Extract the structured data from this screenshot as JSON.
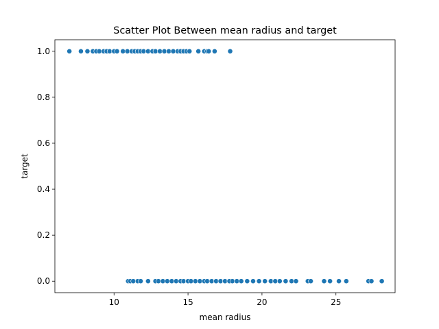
{
  "chart_data": {
    "type": "scatter",
    "title": "Scatter Plot Between mean radius and target",
    "xlabel": "mean radius",
    "ylabel": "target",
    "xlim": [
      6.0,
      29.0
    ],
    "ylim": [
      -0.05,
      1.05
    ],
    "xticks": [
      10,
      15,
      20,
      25
    ],
    "xtick_labels": [
      "10",
      "15",
      "20",
      "25"
    ],
    "yticks": [
      0.0,
      0.2,
      0.4,
      0.6,
      0.8,
      1.0
    ],
    "ytick_labels": [
      "0.0",
      "0.2",
      "0.4",
      "0.6",
      "0.8",
      "1.0"
    ],
    "grid": false,
    "legend": "none",
    "marker_color": "#1f77b4",
    "marker_edge_color": "#ffffff",
    "series": [
      {
        "points": [
          {
            "x": 6.98,
            "y": 1
          },
          {
            "x": 7.76,
            "y": 1
          },
          {
            "x": 8.2,
            "y": 1
          },
          {
            "x": 8.57,
            "y": 1
          },
          {
            "x": 8.8,
            "y": 1
          },
          {
            "x": 9.0,
            "y": 1
          },
          {
            "x": 9.3,
            "y": 1
          },
          {
            "x": 9.5,
            "y": 1
          },
          {
            "x": 9.7,
            "y": 1
          },
          {
            "x": 10.0,
            "y": 1
          },
          {
            "x": 10.2,
            "y": 1
          },
          {
            "x": 10.6,
            "y": 1
          },
          {
            "x": 10.9,
            "y": 1
          },
          {
            "x": 11.2,
            "y": 1
          },
          {
            "x": 11.4,
            "y": 1
          },
          {
            "x": 11.6,
            "y": 1
          },
          {
            "x": 11.8,
            "y": 1
          },
          {
            "x": 12.0,
            "y": 1
          },
          {
            "x": 12.3,
            "y": 1
          },
          {
            "x": 12.6,
            "y": 1
          },
          {
            "x": 12.8,
            "y": 1
          },
          {
            "x": 13.1,
            "y": 1
          },
          {
            "x": 13.4,
            "y": 1
          },
          {
            "x": 13.7,
            "y": 1
          },
          {
            "x": 14.0,
            "y": 1
          },
          {
            "x": 14.3,
            "y": 1
          },
          {
            "x": 14.5,
            "y": 1
          },
          {
            "x": 14.7,
            "y": 1
          },
          {
            "x": 14.9,
            "y": 1
          },
          {
            "x": 15.1,
            "y": 1
          },
          {
            "x": 15.7,
            "y": 1
          },
          {
            "x": 16.1,
            "y": 1
          },
          {
            "x": 16.3,
            "y": 1
          },
          {
            "x": 16.4,
            "y": 1
          },
          {
            "x": 16.8,
            "y": 1
          },
          {
            "x": 17.85,
            "y": 1
          },
          {
            "x": 10.95,
            "y": 0
          },
          {
            "x": 11.1,
            "y": 0
          },
          {
            "x": 11.3,
            "y": 0
          },
          {
            "x": 11.6,
            "y": 0
          },
          {
            "x": 11.8,
            "y": 0
          },
          {
            "x": 12.3,
            "y": 0
          },
          {
            "x": 12.8,
            "y": 0
          },
          {
            "x": 13.0,
            "y": 0
          },
          {
            "x": 13.3,
            "y": 0
          },
          {
            "x": 13.6,
            "y": 0
          },
          {
            "x": 13.9,
            "y": 0
          },
          {
            "x": 14.2,
            "y": 0
          },
          {
            "x": 14.5,
            "y": 0
          },
          {
            "x": 14.7,
            "y": 0
          },
          {
            "x": 15.0,
            "y": 0
          },
          {
            "x": 15.2,
            "y": 0
          },
          {
            "x": 15.5,
            "y": 0
          },
          {
            "x": 15.8,
            "y": 0
          },
          {
            "x": 16.1,
            "y": 0
          },
          {
            "x": 16.3,
            "y": 0
          },
          {
            "x": 16.6,
            "y": 0
          },
          {
            "x": 16.9,
            "y": 0
          },
          {
            "x": 17.2,
            "y": 0
          },
          {
            "x": 17.5,
            "y": 0
          },
          {
            "x": 17.8,
            "y": 0
          },
          {
            "x": 18.0,
            "y": 0
          },
          {
            "x": 18.3,
            "y": 0
          },
          {
            "x": 18.6,
            "y": 0
          },
          {
            "x": 19.0,
            "y": 0
          },
          {
            "x": 19.4,
            "y": 0
          },
          {
            "x": 19.8,
            "y": 0
          },
          {
            "x": 20.2,
            "y": 0
          },
          {
            "x": 20.6,
            "y": 0
          },
          {
            "x": 20.9,
            "y": 0
          },
          {
            "x": 21.2,
            "y": 0
          },
          {
            "x": 21.6,
            "y": 0
          },
          {
            "x": 22.0,
            "y": 0
          },
          {
            "x": 22.3,
            "y": 0
          },
          {
            "x": 23.1,
            "y": 0
          },
          {
            "x": 23.3,
            "y": 0
          },
          {
            "x": 24.2,
            "y": 0
          },
          {
            "x": 24.6,
            "y": 0
          },
          {
            "x": 25.2,
            "y": 0
          },
          {
            "x": 25.7,
            "y": 0
          },
          {
            "x": 27.2,
            "y": 0
          },
          {
            "x": 27.4,
            "y": 0
          },
          {
            "x": 28.1,
            "y": 0
          }
        ]
      }
    ]
  }
}
